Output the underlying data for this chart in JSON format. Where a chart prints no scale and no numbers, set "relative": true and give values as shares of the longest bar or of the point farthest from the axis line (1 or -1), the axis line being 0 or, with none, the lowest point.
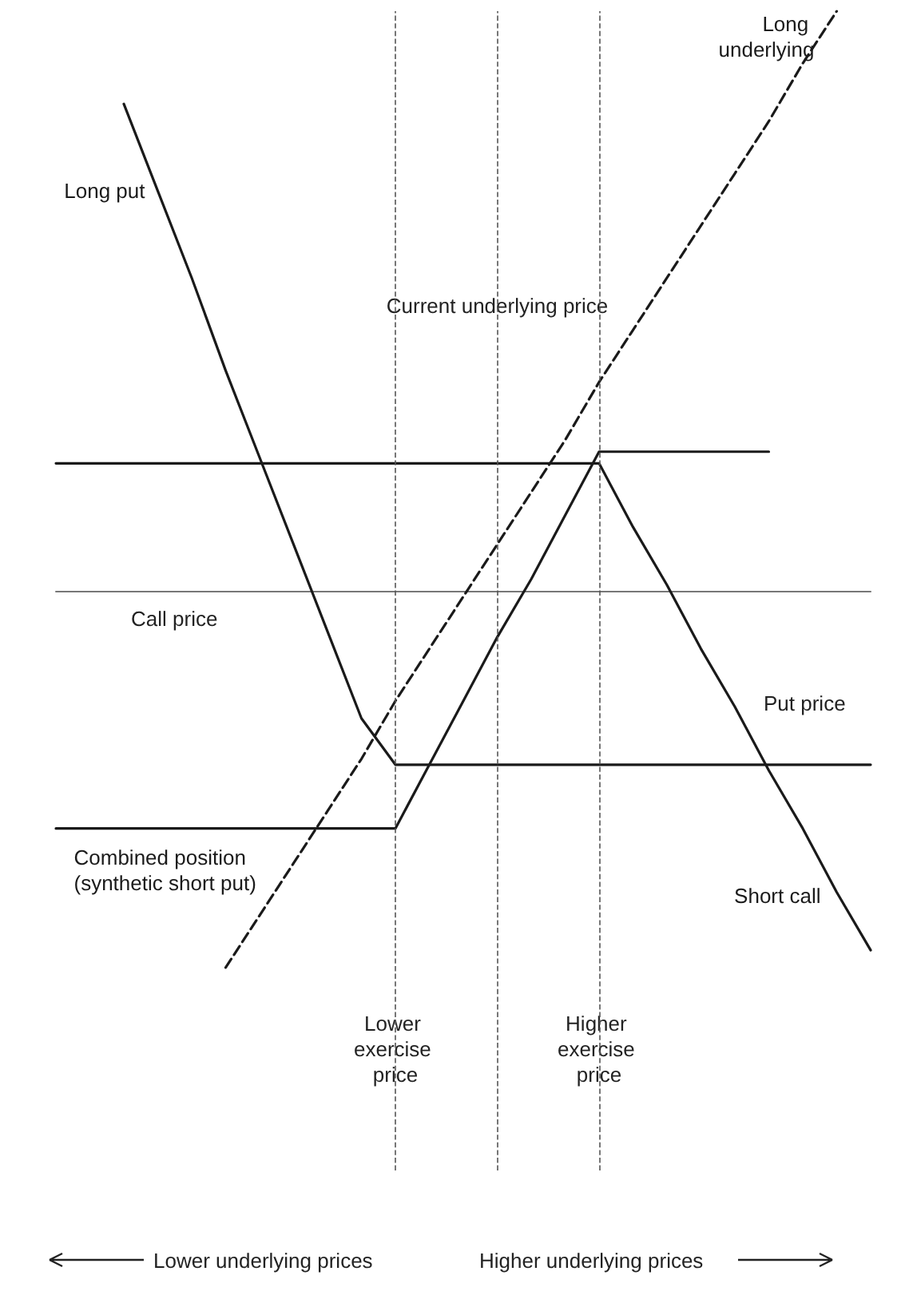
{
  "chart_data": {
    "type": "line",
    "relative": true,
    "categories": [
      null,
      null,
      null,
      null,
      null,
      null,
      null,
      null,
      null,
      null,
      "Lower exercise price",
      null,
      null,
      "Current underlying price",
      null,
      null,
      "Higher exercise price",
      null,
      null,
      null,
      null,
      null,
      null,
      null,
      null
    ],
    "series": [
      {
        "name": "Long put",
        "color": "#1a1a1a",
        "values": [
          null,
          null,
          0.84,
          0.69,
          0.54,
          0.38,
          0.23,
          0.08,
          -0.07,
          -0.22,
          -0.3,
          -0.3,
          -0.3,
          -0.3,
          -0.3,
          -0.3,
          -0.3,
          -0.3,
          -0.3,
          -0.3,
          -0.3,
          -0.3,
          -0.3,
          -0.3,
          -0.3
        ]
      },
      {
        "name": "Short call",
        "color": "#1a1a1a",
        "values": [
          0.22,
          0.22,
          0.22,
          0.22,
          0.22,
          0.22,
          0.22,
          0.22,
          0.22,
          0.22,
          0.22,
          0.22,
          0.22,
          0.22,
          0.22,
          0.22,
          0.22,
          0.11,
          0.01,
          -0.1,
          -0.2,
          -0.31,
          -0.41,
          -0.52,
          -0.62
        ]
      },
      {
        "name": "Long underlying",
        "color": "#1a1a1a",
        "line_style": "dashed",
        "values": [
          null,
          null,
          null,
          null,
          null,
          -0.65,
          -0.56,
          -0.47,
          -0.38,
          -0.29,
          -0.19,
          -0.1,
          -0.01,
          0.08,
          0.17,
          0.26,
          0.36,
          0.45,
          0.54,
          0.63,
          0.72,
          0.81,
          0.91,
          1.0,
          null
        ]
      },
      {
        "name": "Combined position (synthetic short put)",
        "color": "#1a1a1a",
        "values": [
          -0.41,
          -0.41,
          -0.41,
          -0.41,
          -0.41,
          -0.41,
          -0.41,
          -0.41,
          -0.41,
          -0.41,
          -0.41,
          -0.3,
          -0.19,
          -0.08,
          0.02,
          0.13,
          0.24,
          0.24,
          0.24,
          0.24,
          0.24,
          0.24,
          null,
          null,
          null
        ]
      }
    ],
    "ref_lines": [
      {
        "axis": "x",
        "value": "Lower exercise price",
        "line_style": "dashed"
      },
      {
        "axis": "x",
        "value": "Current underlying price",
        "line_style": "dashed"
      },
      {
        "axis": "x",
        "value": "Higher exercise price",
        "line_style": "dashed"
      }
    ],
    "annotations": [
      "Call price",
      "Put price",
      "Lower underlying prices",
      "Higher underlying prices"
    ]
  }
}
